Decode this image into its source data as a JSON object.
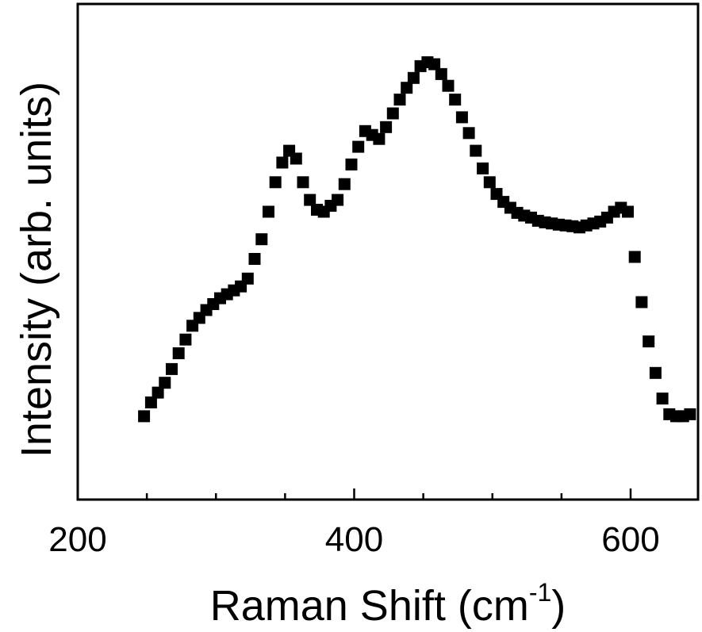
{
  "chart_data": {
    "type": "scatter",
    "marker": "square",
    "marker_color": "#000000",
    "xlabel": "Raman Shift (cm",
    "xlabel_superscript": "-1",
    "xlabel_suffix": ")",
    "ylabel": "Intensity (arb. units)",
    "xlim": [
      200,
      645
    ],
    "ylim": [
      0,
      1
    ],
    "y_ticks_shown": false,
    "grid": false,
    "x_tick_labels": [
      "200",
      "400",
      "600"
    ],
    "x": [
      248,
      253,
      258,
      263,
      268,
      273,
      278,
      283,
      288,
      293,
      298,
      303,
      308,
      313,
      318,
      323,
      328,
      333,
      338,
      343,
      348,
      353,
      358,
      363,
      368,
      373,
      378,
      383,
      388,
      393,
      398,
      403,
      408,
      413,
      418,
      423,
      428,
      433,
      438,
      443,
      448,
      453,
      458,
      463,
      468,
      473,
      478,
      483,
      488,
      493,
      498,
      503,
      508,
      513,
      518,
      523,
      528,
      533,
      538,
      543,
      548,
      553,
      558,
      563,
      568,
      573,
      578,
      583,
      588,
      593,
      598,
      603,
      608,
      613,
      618,
      623,
      628,
      633,
      638,
      643
    ],
    "y": [
      0.095,
      0.13,
      0.155,
      0.18,
      0.215,
      0.255,
      0.29,
      0.325,
      0.345,
      0.365,
      0.38,
      0.395,
      0.405,
      0.415,
      0.425,
      0.445,
      0.495,
      0.545,
      0.615,
      0.69,
      0.74,
      0.77,
      0.75,
      0.69,
      0.645,
      0.62,
      0.615,
      0.63,
      0.645,
      0.685,
      0.735,
      0.78,
      0.82,
      0.81,
      0.8,
      0.83,
      0.865,
      0.9,
      0.93,
      0.955,
      0.985,
      0.995,
      0.99,
      0.965,
      0.935,
      0.9,
      0.855,
      0.815,
      0.77,
      0.725,
      0.69,
      0.66,
      0.64,
      0.625,
      0.612,
      0.605,
      0.6,
      0.592,
      0.588,
      0.585,
      0.582,
      0.58,
      0.578,
      0.575,
      0.58,
      0.585,
      0.59,
      0.6,
      0.615,
      0.625,
      0.615,
      0.5,
      0.385,
      0.285,
      0.205,
      0.14,
      0.1,
      0.095,
      0.095,
      0.1
    ]
  }
}
